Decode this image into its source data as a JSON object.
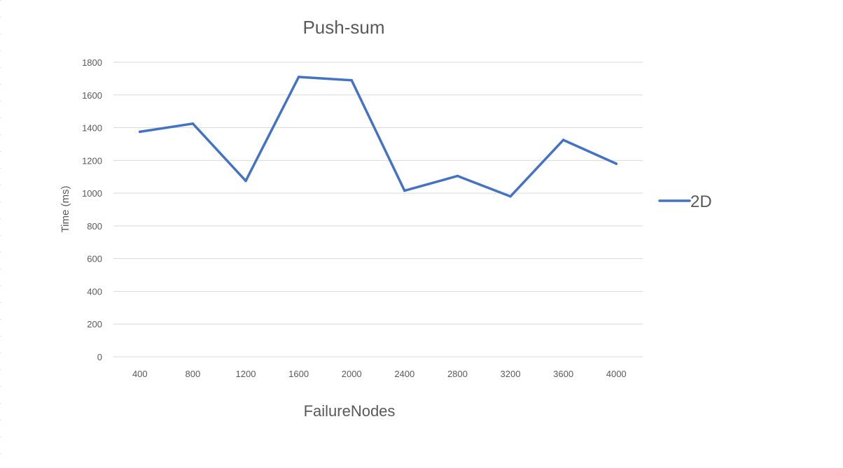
{
  "chart_data": {
    "type": "line",
    "title": "Push-sum",
    "xlabel": "FailureNodes",
    "ylabel": "Time (ms)",
    "categories": [
      "400",
      "800",
      "1200",
      "1600",
      "2000",
      "2400",
      "2800",
      "3200",
      "3600",
      "4000"
    ],
    "series": [
      {
        "name": "2D",
        "color": "#4472c4",
        "values": [
          1375,
          1425,
          1075,
          1710,
          1690,
          1015,
          1105,
          980,
          1325,
          1180
        ]
      }
    ],
    "ylim": [
      0,
      1800
    ],
    "yticks": [
      "0",
      "200",
      "400",
      "600",
      "800",
      "1000",
      "1200",
      "1400",
      "1600",
      "1800"
    ],
    "grid": true,
    "legend_position": "right"
  }
}
